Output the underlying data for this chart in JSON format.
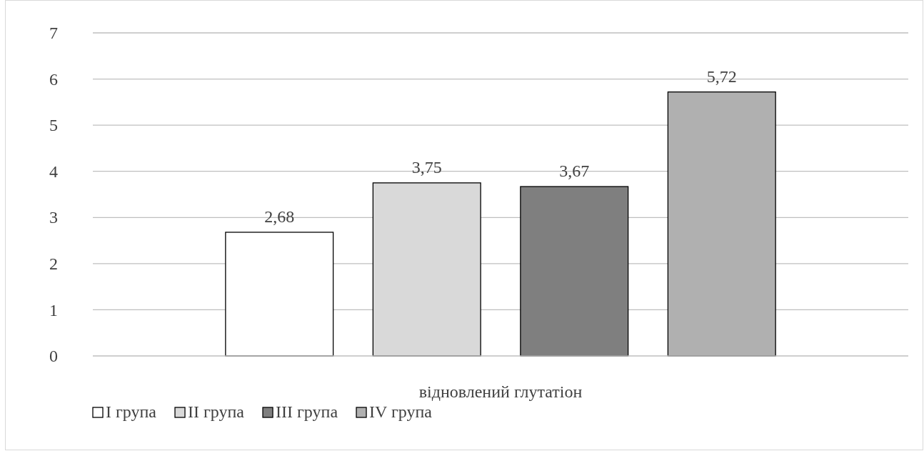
{
  "chart_data": {
    "type": "bar",
    "xlabel": "відновлений глутатіон",
    "categories": [
      null
    ],
    "series": [
      {
        "name": "I група",
        "color": "#ffffff",
        "values": [
          2.68
        ],
        "value_labels": [
          "2,68"
        ]
      },
      {
        "name": "II група",
        "color": "#d9d9d9",
        "values": [
          3.75
        ],
        "value_labels": [
          "3,75"
        ]
      },
      {
        "name": "III група",
        "color": "#7f7f7f",
        "values": [
          3.67
        ],
        "value_labels": [
          "3,67"
        ]
      },
      {
        "name": "IV група",
        "color": "#b0b0b0",
        "values": [
          5.72
        ],
        "value_labels": [
          "5,72"
        ]
      }
    ],
    "ylim": [
      0,
      7
    ],
    "yticks": [
      0,
      1,
      2,
      3,
      4,
      5,
      6,
      7
    ],
    "grid": "y",
    "legend": "bottom"
  }
}
